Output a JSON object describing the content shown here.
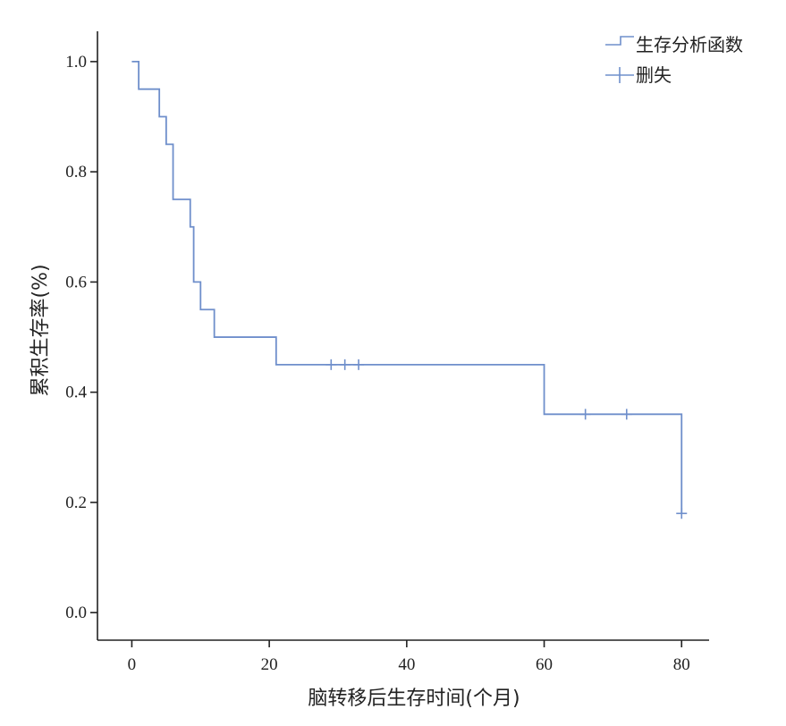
{
  "chart_data": {
    "type": "line",
    "subtype": "kaplan-meier-step",
    "xlabel": "脑转移后生存时间(个月)",
    "ylabel": "累积生存率(%)",
    "xlim": [
      -5,
      84
    ],
    "ylim": [
      -0.05,
      1.055
    ],
    "x_ticks": [
      0,
      20,
      40,
      60,
      80
    ],
    "x_tick_labels": [
      "0",
      "20",
      "40",
      "60",
      "80"
    ],
    "y_ticks": [
      0.0,
      0.2,
      0.4,
      0.6,
      0.8,
      1.0
    ],
    "y_tick_labels": [
      "0.0",
      "0.2",
      "0.4",
      "0.6",
      "0.8",
      "1.0"
    ],
    "grid": false,
    "legend_position": "top-right",
    "line_color": "#6f8fcb",
    "legend": [
      {
        "label": "生存分析函数",
        "symbol": "step"
      },
      {
        "label": "删失",
        "symbol": "censor"
      }
    ],
    "series": [
      {
        "name": "生存分析函数",
        "steps": [
          {
            "x": 0,
            "y": 1.0
          },
          {
            "x": 1,
            "y": 0.95
          },
          {
            "x": 4,
            "y": 0.9
          },
          {
            "x": 5,
            "y": 0.85
          },
          {
            "x": 6,
            "y": 0.75
          },
          {
            "x": 8.5,
            "y": 0.7
          },
          {
            "x": 9,
            "y": 0.6
          },
          {
            "x": 10,
            "y": 0.55
          },
          {
            "x": 12,
            "y": 0.5
          },
          {
            "x": 21,
            "y": 0.45
          },
          {
            "x": 60,
            "y": 0.36
          },
          {
            "x": 80,
            "y": 0.18
          }
        ],
        "censored": [
          {
            "x": 29,
            "y": 0.45
          },
          {
            "x": 31,
            "y": 0.45
          },
          {
            "x": 33,
            "y": 0.45
          },
          {
            "x": 66,
            "y": 0.36
          },
          {
            "x": 72,
            "y": 0.36
          },
          {
            "x": 80,
            "y": 0.18
          }
        ]
      }
    ]
  }
}
